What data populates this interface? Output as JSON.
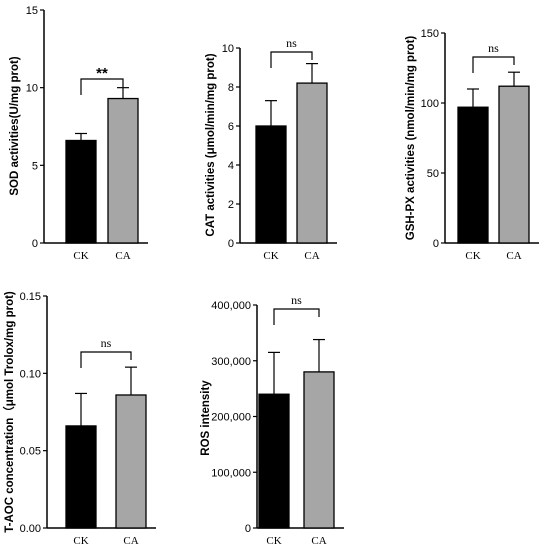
{
  "colors": {
    "CK": "#000000",
    "CA": "#a6a6a6",
    "axis": "#000000"
  },
  "chart_data": [
    {
      "type": "bar",
      "categories": [
        "CK",
        "CA"
      ],
      "values": [
        6.6,
        9.3
      ],
      "errors": [
        0.45,
        0.7
      ],
      "ylabel": "SOD activities(U/mg prot)",
      "ylim": [
        0,
        15
      ],
      "yticks": [
        "0",
        "5",
        "10",
        "15"
      ],
      "significance": "**"
    },
    {
      "type": "bar",
      "categories": [
        "CK",
        "CA"
      ],
      "values": [
        6.0,
        8.2
      ],
      "errors": [
        1.3,
        1.0
      ],
      "ylabel": "CAT activities (μmol/min/mg prot)",
      "ylim": [
        0,
        10
      ],
      "yticks": [
        "0",
        "2",
        "4",
        "6",
        "8",
        "10"
      ],
      "significance": "ns"
    },
    {
      "type": "bar",
      "categories": [
        "CK",
        "CA"
      ],
      "values": [
        97,
        112
      ],
      "errors": [
        13,
        10
      ],
      "ylabel": "GSH-PX activities (nmol/min/mg prot)",
      "ylim": [
        0,
        150
      ],
      "yticks": [
        "0",
        "50",
        "100",
        "150"
      ],
      "significance": "ns"
    },
    {
      "type": "bar",
      "categories": [
        "CK",
        "CA"
      ],
      "values": [
        0.066,
        0.086
      ],
      "errors": [
        0.021,
        0.018
      ],
      "ylabel": "T-AOC concentration（μmol Trolox/mg prot)",
      "ylim": [
        0,
        0.15
      ],
      "yticks": [
        "0.00",
        "0.05",
        "0.10",
        "0.15"
      ],
      "significance": "ns"
    },
    {
      "type": "bar",
      "categories": [
        "CK",
        "CA"
      ],
      "values": [
        240000,
        280000
      ],
      "errors": [
        75000,
        58000
      ],
      "ylabel": "ROS intensity",
      "ylim": [
        0,
        400000
      ],
      "yticks": [
        "0",
        "100,000",
        "200,000",
        "300,000",
        "400,000"
      ],
      "significance": "ns"
    }
  ]
}
